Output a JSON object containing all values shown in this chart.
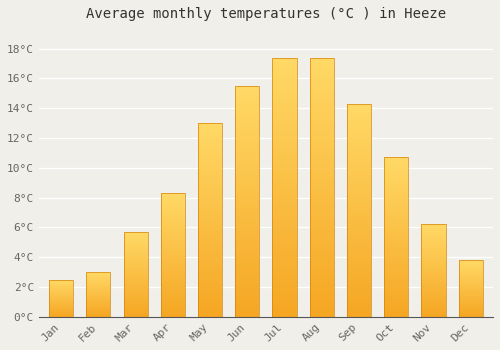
{
  "title": "Average monthly temperatures (°C ) in Heeze",
  "months": [
    "Jan",
    "Feb",
    "Mar",
    "Apr",
    "May",
    "Jun",
    "Jul",
    "Aug",
    "Sep",
    "Oct",
    "Nov",
    "Dec"
  ],
  "values": [
    2.5,
    3.0,
    5.7,
    8.3,
    13.0,
    15.5,
    17.4,
    17.4,
    14.3,
    10.7,
    6.2,
    3.8
  ],
  "bar_color_bottom": "#F5A623",
  "bar_color_top": "#FFD966",
  "background_color": "#F0EFE9",
  "grid_color": "#FFFFFF",
  "ytick_labels": [
    "0°C",
    "2°C",
    "4°C",
    "6°C",
    "8°C",
    "10°C",
    "12°C",
    "14°C",
    "16°C",
    "18°C"
  ],
  "ytick_values": [
    0,
    2,
    4,
    6,
    8,
    10,
    12,
    14,
    16,
    18
  ],
  "ylim": [
    0,
    19.5
  ],
  "title_fontsize": 10,
  "tick_fontsize": 8,
  "tick_color": "#666666",
  "font_family": "monospace",
  "bar_width": 0.65
}
